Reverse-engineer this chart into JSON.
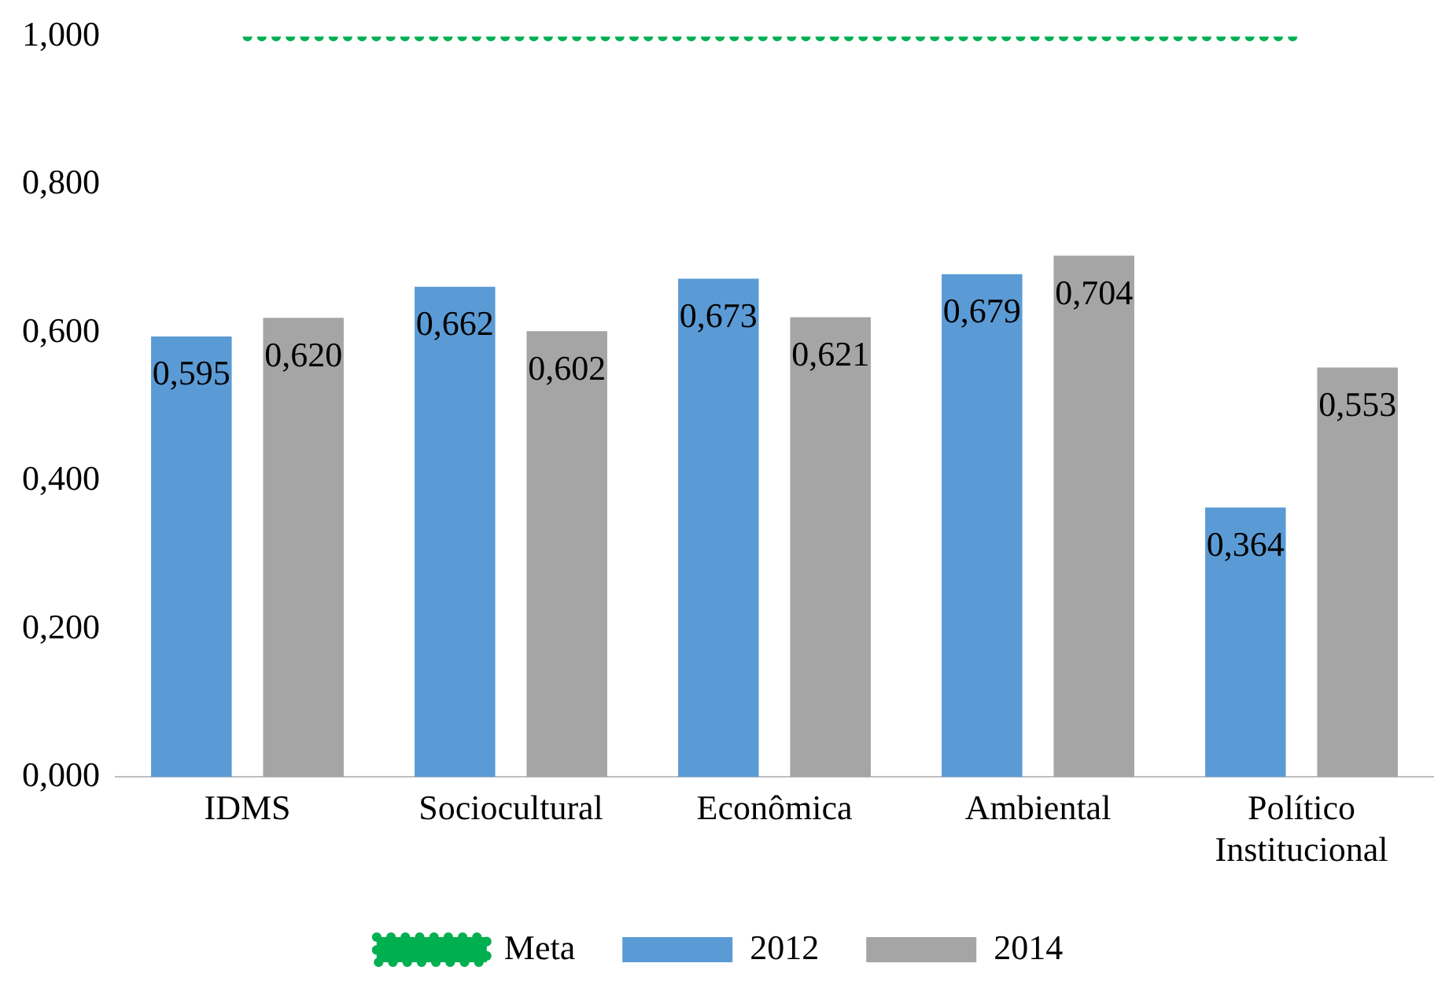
{
  "chart_data": {
    "type": "bar",
    "categories": [
      "IDMS",
      "Sociocultural",
      "Econômica",
      "Ambiental",
      "Político Institucional"
    ],
    "series": [
      {
        "name": "2012",
        "color": "#5b9bd5",
        "values": [
          0.595,
          0.662,
          0.673,
          0.679,
          0.364
        ],
        "value_labels": [
          "0,595",
          "0,662",
          "0,673",
          "0,679",
          "0,364"
        ]
      },
      {
        "name": "2014",
        "color": "#a5a5a5",
        "values": [
          0.62,
          0.602,
          0.621,
          0.704,
          0.553
        ],
        "value_labels": [
          "0,620",
          "0,602",
          "0,621",
          "0,704",
          "0,553"
        ]
      },
      {
        "name": "Meta",
        "type": "line",
        "color": "#00b050",
        "line_style": "dotted",
        "marker": "none",
        "values": [
          1,
          1,
          1,
          1,
          1
        ]
      }
    ],
    "ylim": [
      0,
      1
    ],
    "yticks": [
      {
        "value": 0,
        "label": "0,000"
      },
      {
        "value": 0.2,
        "label": "0,200"
      },
      {
        "value": 0.4,
        "label": "0,400"
      },
      {
        "value": 0.6,
        "label": "0,600"
      },
      {
        "value": 0.8,
        "label": "0,800"
      },
      {
        "value": 1,
        "label": "1,000"
      }
    ],
    "grid": false,
    "legend": "bottom"
  }
}
